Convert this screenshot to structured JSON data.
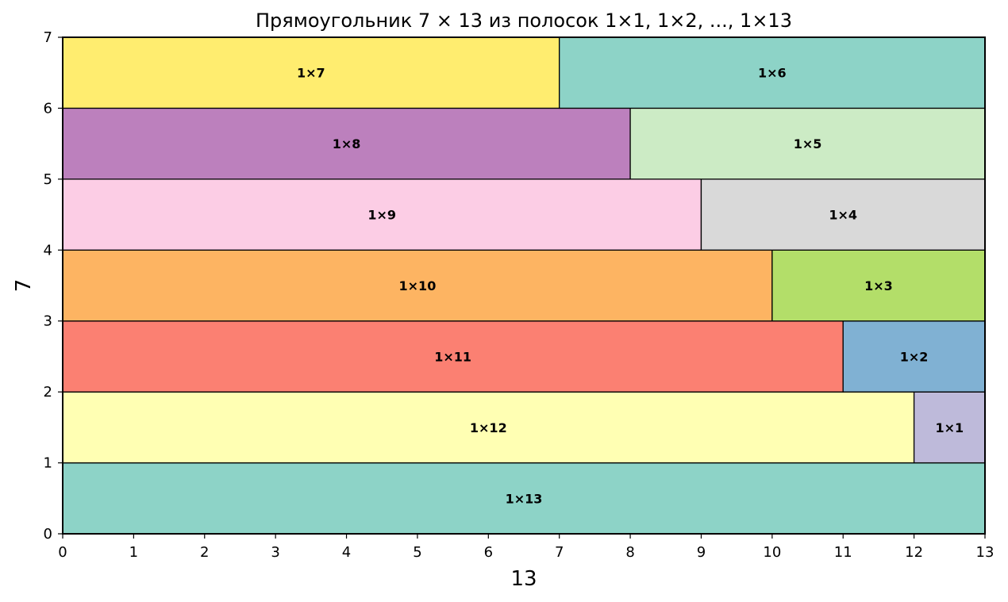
{
  "chart_data": {
    "type": "bar",
    "title": "Прямоугольник 7 × 13 из полосок 1×1, 1×2, ..., 1×13",
    "xlabel": "13",
    "ylabel": "7",
    "xlim": [
      0,
      13
    ],
    "ylim": [
      0,
      7
    ],
    "xticks": [
      "0",
      "1",
      "2",
      "3",
      "4",
      "5",
      "6",
      "7",
      "8",
      "9",
      "10",
      "11",
      "12",
      "13"
    ],
    "yticks": [
      "0",
      "1",
      "2",
      "3",
      "4",
      "5",
      "6",
      "7"
    ],
    "grid": true,
    "strips": [
      {
        "label": "1×13",
        "x_start": 0,
        "x_end": 13,
        "row": 0,
        "color": "#8dd3c7"
      },
      {
        "label": "1×12",
        "x_start": 0,
        "x_end": 12,
        "row": 1,
        "color": "#ffffb3"
      },
      {
        "label": "1×1",
        "x_start": 12,
        "x_end": 13,
        "row": 1,
        "color": "#bebada"
      },
      {
        "label": "1×11",
        "x_start": 0,
        "x_end": 11,
        "row": 2,
        "color": "#fb8072"
      },
      {
        "label": "1×2",
        "x_start": 11,
        "x_end": 13,
        "row": 2,
        "color": "#80b1d3"
      },
      {
        "label": "1×10",
        "x_start": 0,
        "x_end": 10,
        "row": 3,
        "color": "#fdb462"
      },
      {
        "label": "1×3",
        "x_start": 10,
        "x_end": 13,
        "row": 3,
        "color": "#b3de69"
      },
      {
        "label": "1×9",
        "x_start": 0,
        "x_end": 9,
        "row": 4,
        "color": "#fccde5"
      },
      {
        "label": "1×4",
        "x_start": 9,
        "x_end": 13,
        "row": 4,
        "color": "#d9d9d9"
      },
      {
        "label": "1×8",
        "x_start": 0,
        "x_end": 8,
        "row": 5,
        "color": "#bc80bd"
      },
      {
        "label": "1×5",
        "x_start": 8,
        "x_end": 13,
        "row": 5,
        "color": "#ccebc5"
      },
      {
        "label": "1×7",
        "x_start": 0,
        "x_end": 7,
        "row": 6,
        "color": "#ffed6f"
      },
      {
        "label": "1×6",
        "x_start": 7,
        "x_end": 13,
        "row": 6,
        "color": "#8dd3c7"
      }
    ]
  }
}
